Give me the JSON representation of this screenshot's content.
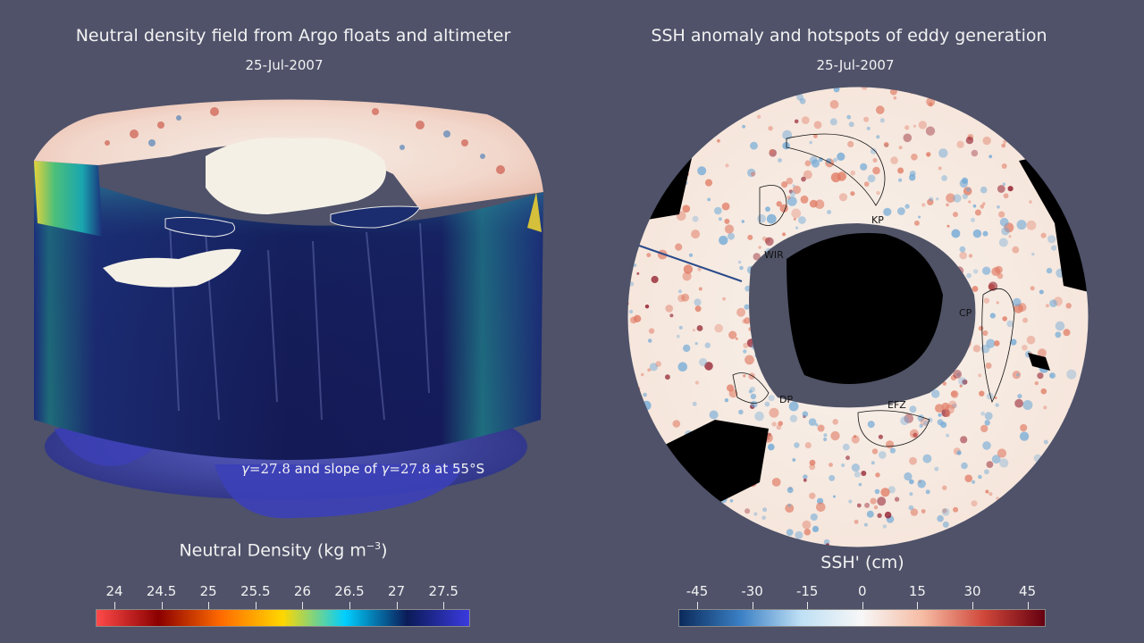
{
  "left_panel": {
    "title": "Neutral density field from Argo floats and altimeter",
    "date": "25-Jul-2007",
    "annotation": {
      "gamma_symbol": "γ",
      "eq_value_1": "=27.8",
      "mid_text": " and slope of ",
      "eq_value_2": "=27.8",
      "tail_text": " at 55°S"
    },
    "colorbar": {
      "title_prefix": "Neutral Density (kg m",
      "title_exponent": "−3",
      "title_suffix": ")",
      "ticks": [
        "24",
        "24.5",
        "25",
        "25.5",
        "26",
        "26.5",
        "27",
        "27.5"
      ],
      "colors": [
        "#ff4a4a",
        "#8b0000",
        "#ff6a00",
        "#ffd700",
        "#00cfff",
        "#0b1b57",
        "#3a3ae0"
      ]
    }
  },
  "right_panel": {
    "title": "SSH anomaly and hotspots of eddy generation",
    "date": "25-Jul-2007",
    "region_labels": [
      "KP",
      "WIR",
      "CP",
      "DP",
      "EFZ"
    ],
    "colorbar": {
      "title": "SSH' (cm)",
      "ticks": [
        "-45",
        "-30",
        "-15",
        "0",
        "15",
        "30",
        "45"
      ],
      "colors": [
        "#0b2a5b",
        "#3a7fc4",
        "#bfe0f5",
        "#f7f7f7",
        "#f6bba3",
        "#d0473a",
        "#650010"
      ]
    }
  }
}
